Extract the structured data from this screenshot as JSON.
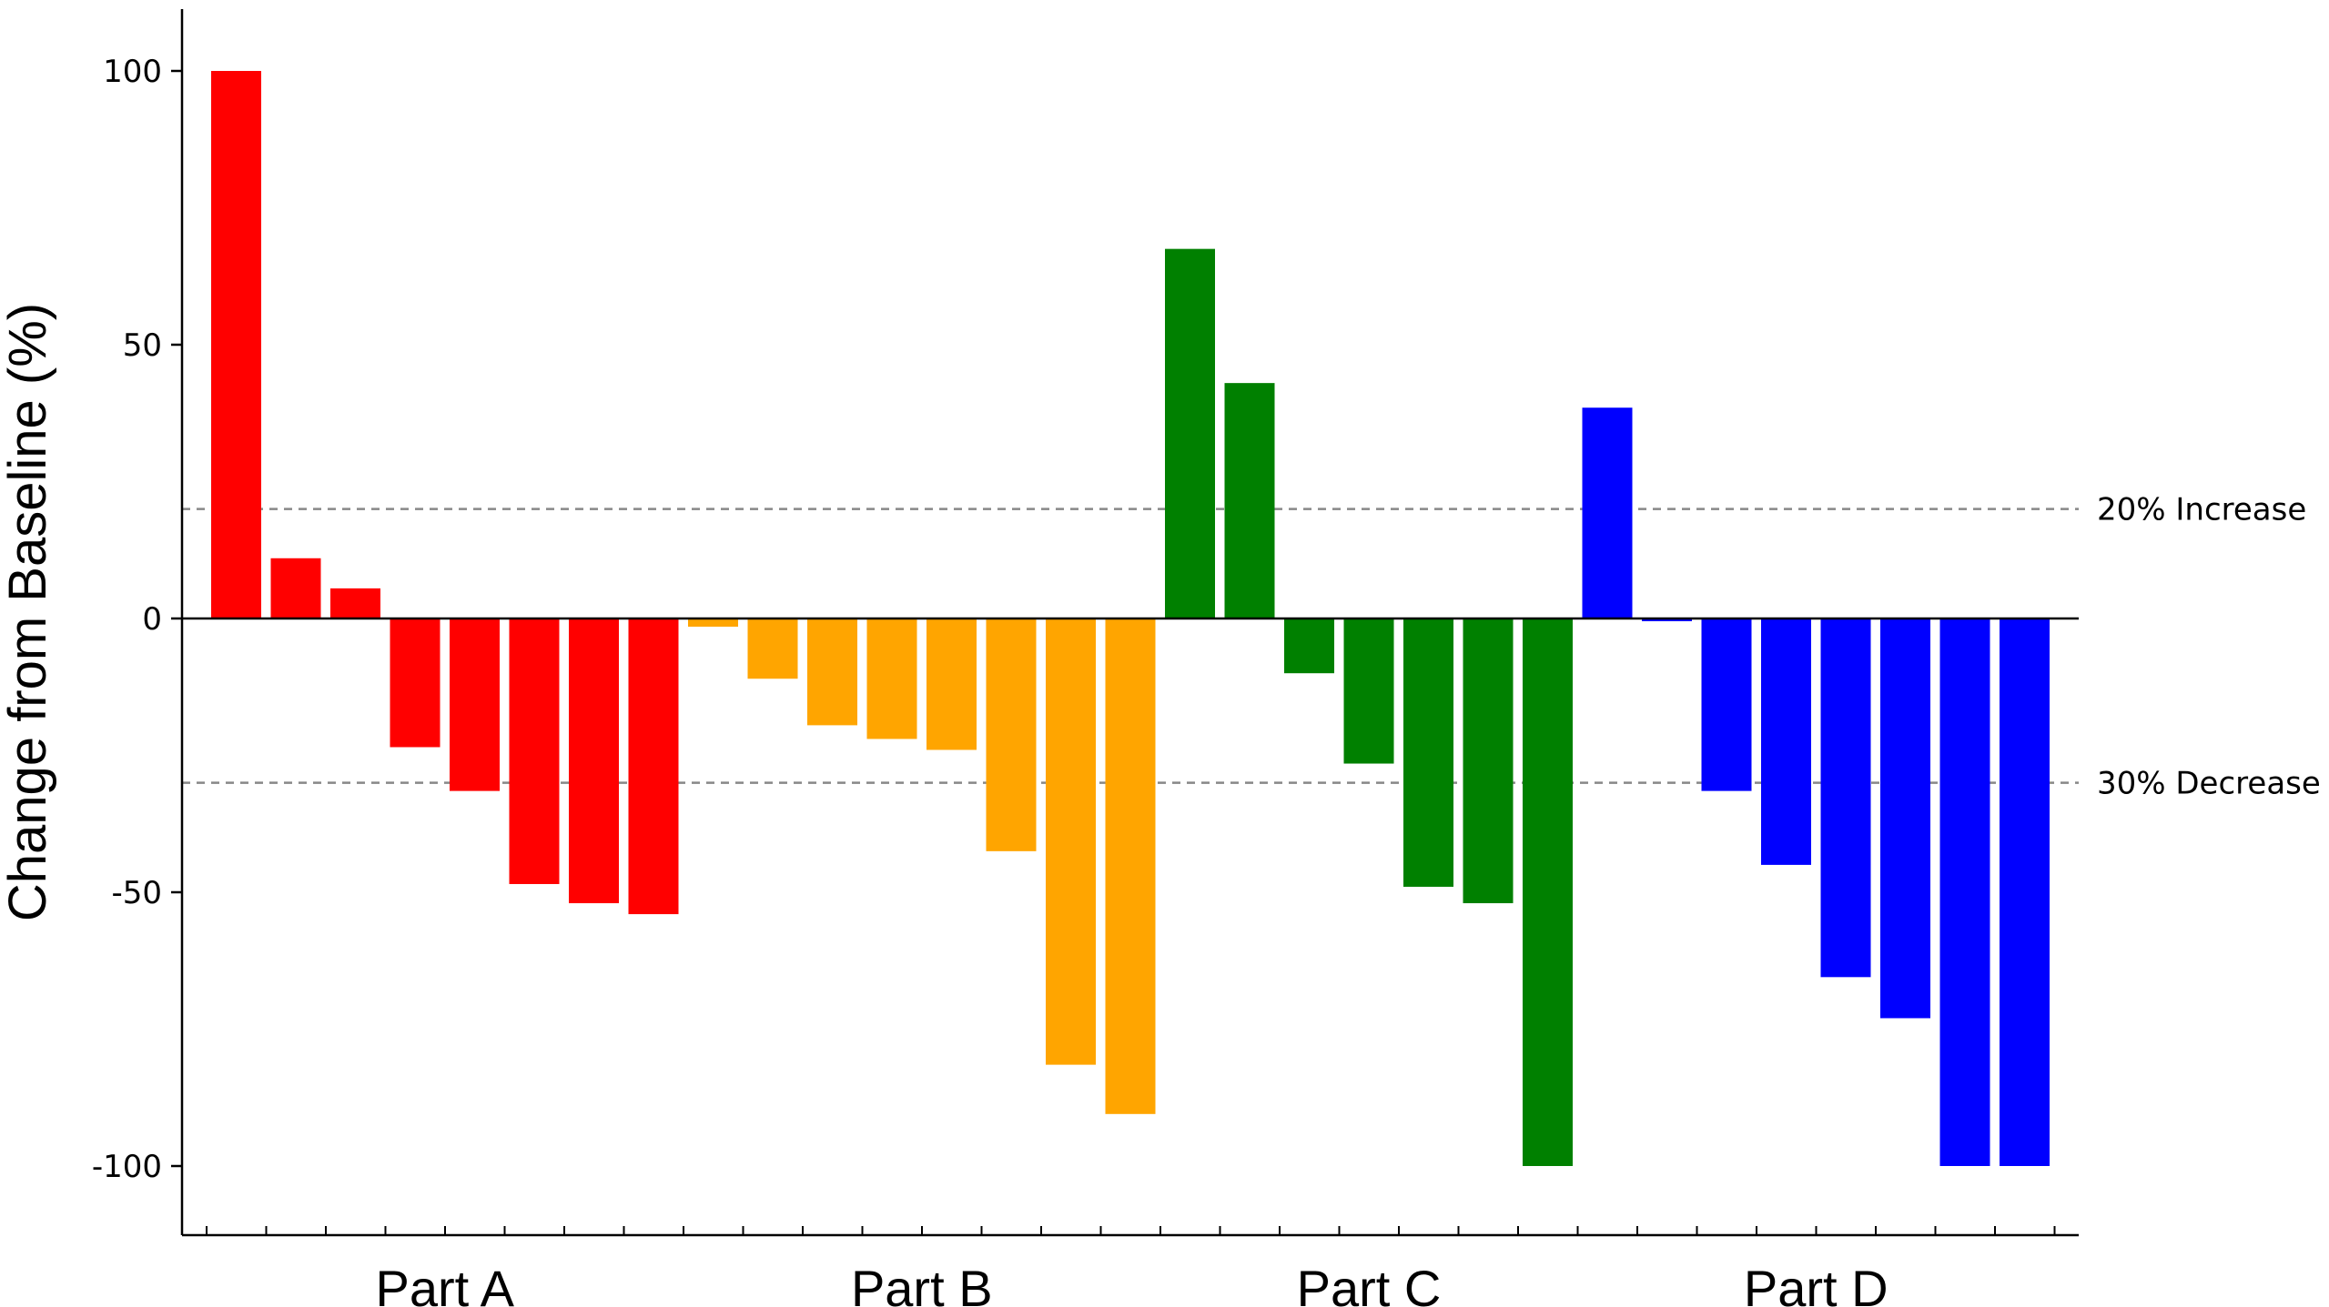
{
  "chart_data": {
    "type": "bar",
    "title": "",
    "xlabel": "",
    "ylabel": "Change from Baseline (%)",
    "ylim": [
      -112,
      112
    ],
    "yticks": [
      100,
      50,
      0,
      -50,
      -100
    ],
    "grid": false,
    "legend": "none",
    "reference_lines": [
      {
        "value": 20,
        "label": "20% Increase"
      },
      {
        "value": -30,
        "label": "30% Decrease"
      }
    ],
    "groups": [
      {
        "name": "Part A",
        "color": "#ff0000",
        "values": [
          100,
          11,
          5.5,
          -23.5,
          -31.5,
          -48.5,
          -52,
          -54
        ]
      },
      {
        "name": "Part B",
        "color": "#ffa500",
        "values": [
          -1.5,
          -11,
          -19.5,
          -22,
          -24,
          -42.5,
          -81.5,
          -90.5
        ]
      },
      {
        "name": "Part C",
        "color": "#008000",
        "values": [
          67.5,
          43,
          -10,
          -26.5,
          -49,
          -52,
          -100
        ]
      },
      {
        "name": "Part D",
        "color": "#0000ff",
        "values": [
          38.5,
          -0.5,
          -31.5,
          -45,
          -65.5,
          -73,
          -100,
          -100
        ]
      }
    ]
  }
}
